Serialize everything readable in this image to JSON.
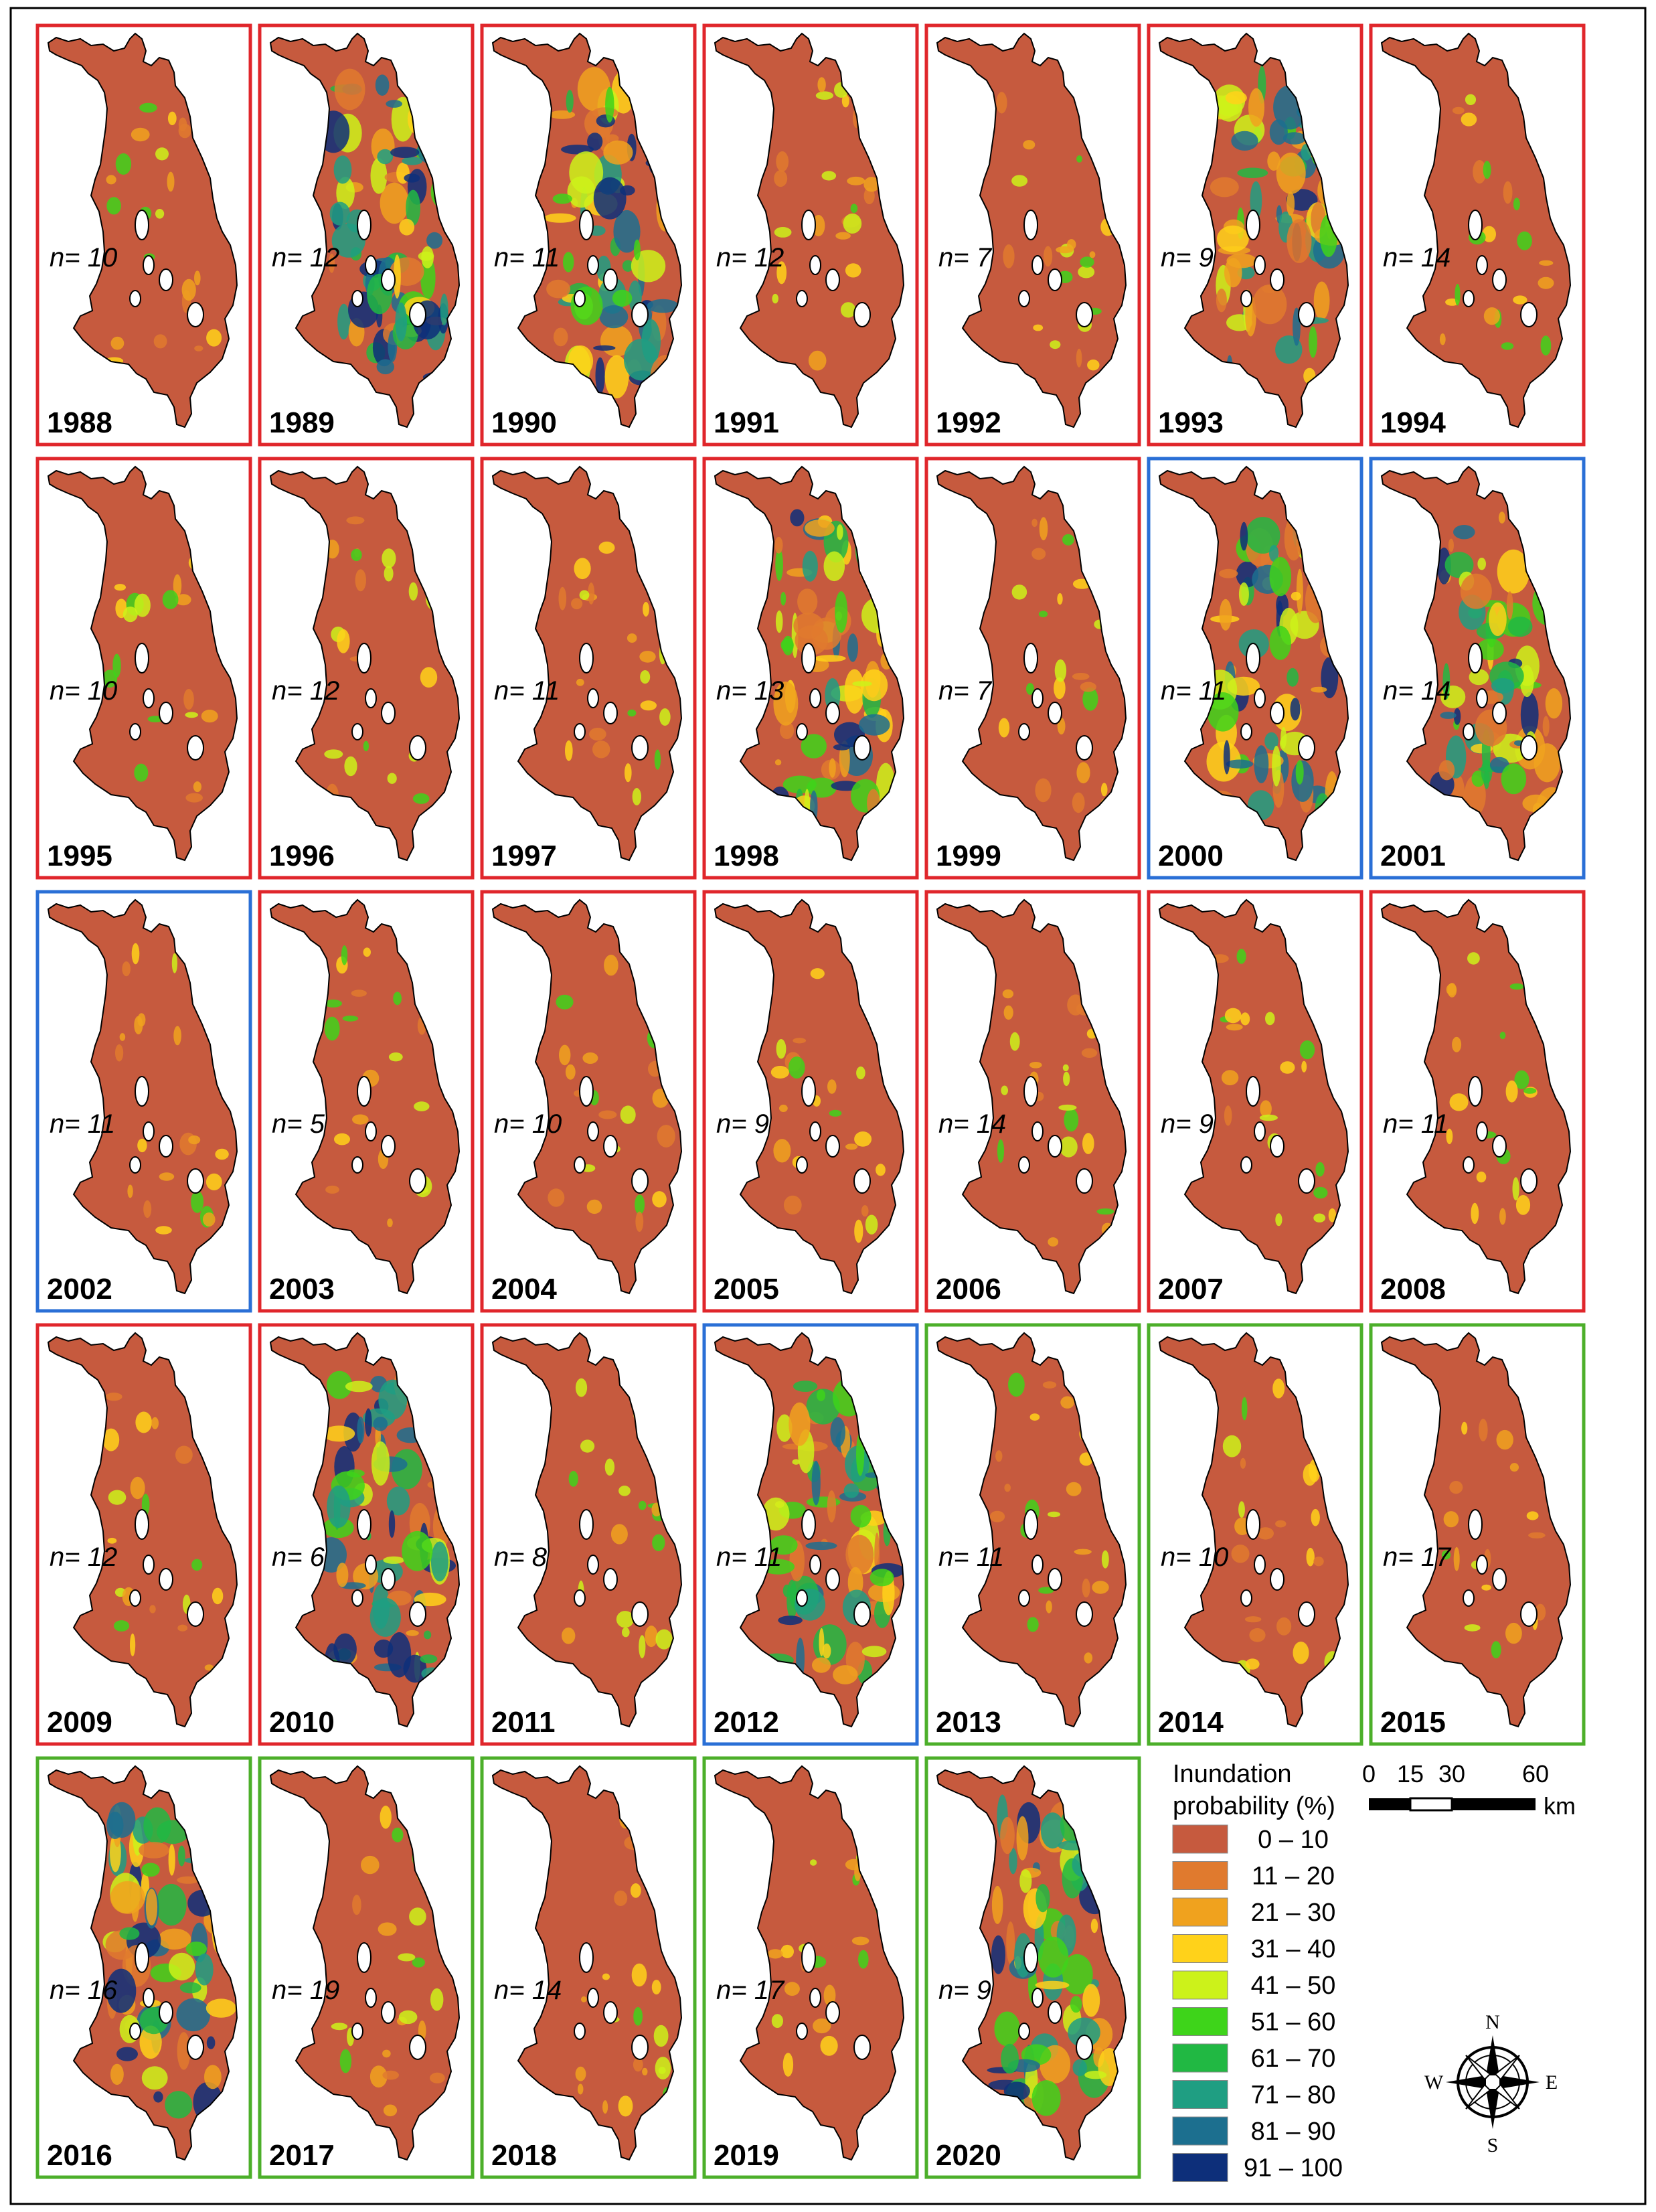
{
  "panels": [
    {
      "year": "1988",
      "n": "n= 10",
      "frame": "red"
    },
    {
      "year": "1989",
      "n": "n= 12",
      "frame": "red"
    },
    {
      "year": "1990",
      "n": "n= 11",
      "frame": "red"
    },
    {
      "year": "1991",
      "n": "n= 12",
      "frame": "red"
    },
    {
      "year": "1992",
      "n": "n= 7",
      "frame": "red"
    },
    {
      "year": "1993",
      "n": "n= 9",
      "frame": "red"
    },
    {
      "year": "1994",
      "n": "n= 14",
      "frame": "red"
    },
    {
      "year": "1995",
      "n": "n= 10",
      "frame": "red"
    },
    {
      "year": "1996",
      "n": "n= 12",
      "frame": "red"
    },
    {
      "year": "1997",
      "n": "n= 11",
      "frame": "red"
    },
    {
      "year": "1998",
      "n": "n= 13",
      "frame": "red"
    },
    {
      "year": "1999",
      "n": "n= 7",
      "frame": "red"
    },
    {
      "year": "2000",
      "n": "n= 11",
      "frame": "blue"
    },
    {
      "year": "2001",
      "n": "n= 14",
      "frame": "blue"
    },
    {
      "year": "2002",
      "n": "n= 11",
      "frame": "blue"
    },
    {
      "year": "2003",
      "n": "n= 5",
      "frame": "red"
    },
    {
      "year": "2004",
      "n": "n= 10",
      "frame": "red"
    },
    {
      "year": "2005",
      "n": "n= 9",
      "frame": "red"
    },
    {
      "year": "2006",
      "n": "n= 14",
      "frame": "red"
    },
    {
      "year": "2007",
      "n": "n= 9",
      "frame": "red"
    },
    {
      "year": "2008",
      "n": "n= 11",
      "frame": "red"
    },
    {
      "year": "2009",
      "n": "n= 12",
      "frame": "red"
    },
    {
      "year": "2010",
      "n": "n= 6",
      "frame": "red"
    },
    {
      "year": "2011",
      "n": "n= 8",
      "frame": "red"
    },
    {
      "year": "2012",
      "n": "n= 11",
      "frame": "blue"
    },
    {
      "year": "2013",
      "n": "n= 11",
      "frame": "green"
    },
    {
      "year": "2014",
      "n": "n= 10",
      "frame": "green"
    },
    {
      "year": "2015",
      "n": "n= 17",
      "frame": "green"
    },
    {
      "year": "2016",
      "n": "n= 16",
      "frame": "green"
    },
    {
      "year": "2017",
      "n": "n= 19",
      "frame": "green"
    },
    {
      "year": "2018",
      "n": "n= 14",
      "frame": "green"
    },
    {
      "year": "2019",
      "n": "n= 17",
      "frame": "green"
    },
    {
      "year": "2020",
      "n": "n= 9",
      "frame": "green"
    }
  ],
  "frame_colors": {
    "red": "#e0262b",
    "blue": "#2a6fd6",
    "green": "#4caf2a"
  },
  "legend": {
    "title_line1": "Inundation",
    "title_line2": "probability (%)",
    "classes": [
      {
        "label": "0 – 10",
        "color": "#c65a3e"
      },
      {
        "label": "11 – 20",
        "color": "#e07a2e"
      },
      {
        "label": "21 – 30",
        "color": "#f0a21e"
      },
      {
        "label": "31 – 40",
        "color": "#ffd21a"
      },
      {
        "label": "41 – 50",
        "color": "#ccf21a"
      },
      {
        "label": "51 – 60",
        "color": "#3ed41a"
      },
      {
        "label": "61 – 70",
        "color": "#21b843"
      },
      {
        "label": "71 – 80",
        "color": "#1f9e82"
      },
      {
        "label": "81 – 90",
        "color": "#1c6f8f"
      },
      {
        "label": "91 – 100",
        "color": "#0d2f7a"
      }
    ]
  },
  "scale_bar": {
    "ticks": [
      "0",
      "15",
      "30",
      "60"
    ],
    "unit": "km"
  },
  "compass": {
    "n": "N",
    "s": "S",
    "e": "E",
    "w": "W",
    "icon": "compass-rose-icon"
  }
}
